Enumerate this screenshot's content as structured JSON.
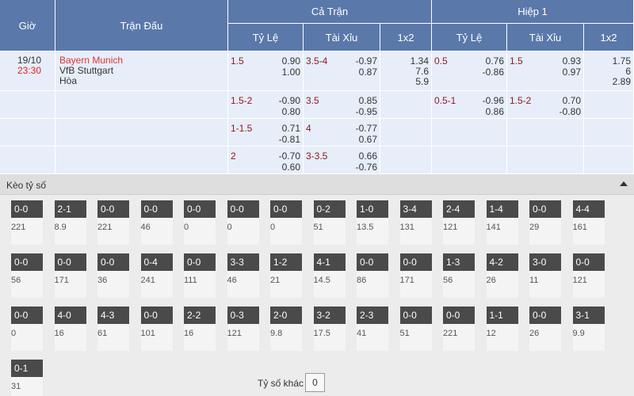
{
  "header": {
    "time": "Giờ",
    "match": "Trận Đấu",
    "full": "Cả Trận",
    "half": "Hiệp 1",
    "columns": [
      "Tỷ Lệ",
      "Tài Xỉu",
      "1x2",
      "Tỷ Lệ",
      "Tài Xỉu",
      "1x2"
    ]
  },
  "match": {
    "date": "19/10",
    "time": "23:30",
    "home": "Bayern Munich",
    "away": "VfB Stuttgart",
    "draw": "Hòa"
  },
  "rows": [
    {
      "full_hdp": {
        "line": "1.5",
        "odds": [
          "0.90",
          "1.00"
        ]
      },
      "full_ou": {
        "line": "3.5-4",
        "odds": [
          "-0.97",
          "0.87"
        ]
      },
      "full_1x2": [
        "1.34",
        "7.6",
        "5.9"
      ],
      "half_hdp": {
        "line": "0.5",
        "odds": [
          "0.76",
          "-0.86"
        ]
      },
      "half_ou": {
        "line": "1.5",
        "odds": [
          "0.93",
          "0.97"
        ]
      },
      "half_1x2": [
        "1.75",
        "6",
        "2.89"
      ]
    },
    {
      "full_hdp": {
        "line": "1.5-2",
        "odds": [
          "-0.90",
          "0.80"
        ]
      },
      "full_ou": {
        "line": "3.5",
        "odds": [
          "0.85",
          "-0.95"
        ]
      },
      "half_hdp": {
        "line": "0.5-1",
        "odds": [
          "-0.96",
          "0.86"
        ]
      },
      "half_ou": {
        "line": "1.5-2",
        "odds": [
          "0.70",
          "-0.80"
        ]
      }
    },
    {
      "full_hdp": {
        "line": "1-1.5",
        "odds": [
          "0.71",
          "-0.81"
        ]
      },
      "full_ou": {
        "line": "4",
        "odds": [
          "-0.77",
          "0.67"
        ]
      }
    },
    {
      "full_hdp": {
        "line": "2",
        "odds": [
          "-0.70",
          "0.60"
        ]
      },
      "full_ou": {
        "line": "3-3.5",
        "odds": [
          "0.66",
          "-0.76"
        ]
      }
    }
  ],
  "score_section": {
    "title": "Kèo tỷ số",
    "other_label": "Tỷ số khác",
    "other_value": "0",
    "scores": [
      {
        "score": "0-0",
        "odds": "221"
      },
      {
        "score": "2-1",
        "odds": "8.9"
      },
      {
        "score": "0-0",
        "odds": "221"
      },
      {
        "score": "0-0",
        "odds": "46"
      },
      {
        "score": "0-0",
        "odds": "0"
      },
      {
        "score": "0-0",
        "odds": "0"
      },
      {
        "score": "0-0",
        "odds": "0"
      },
      {
        "score": "0-2",
        "odds": "51"
      },
      {
        "score": "1-0",
        "odds": "13.5"
      },
      {
        "score": "3-4",
        "odds": "131"
      },
      {
        "score": "2-4",
        "odds": "121"
      },
      {
        "score": "1-4",
        "odds": "141"
      },
      {
        "score": "0-0",
        "odds": "29"
      },
      {
        "score": "4-4",
        "odds": "161"
      },
      {
        "score": "0-0",
        "odds": "56"
      },
      {
        "score": "0-0",
        "odds": "171"
      },
      {
        "score": "0-0",
        "odds": "36"
      },
      {
        "score": "0-4",
        "odds": "241"
      },
      {
        "score": "0-0",
        "odds": "111"
      },
      {
        "score": "3-3",
        "odds": "46"
      },
      {
        "score": "1-2",
        "odds": "21"
      },
      {
        "score": "4-1",
        "odds": "14.5"
      },
      {
        "score": "0-0",
        "odds": "86"
      },
      {
        "score": "0-0",
        "odds": "171"
      },
      {
        "score": "1-3",
        "odds": "56"
      },
      {
        "score": "4-2",
        "odds": "26"
      },
      {
        "score": "3-0",
        "odds": "11"
      },
      {
        "score": "0-0",
        "odds": "121"
      },
      {
        "score": "0-0",
        "odds": "0"
      },
      {
        "score": "4-0",
        "odds": "16"
      },
      {
        "score": "4-3",
        "odds": "61"
      },
      {
        "score": "0-0",
        "odds": "101"
      },
      {
        "score": "2-2",
        "odds": "16"
      },
      {
        "score": "0-3",
        "odds": "121"
      },
      {
        "score": "2-0",
        "odds": "9.8"
      },
      {
        "score": "3-2",
        "odds": "17.5"
      },
      {
        "score": "2-3",
        "odds": "41"
      },
      {
        "score": "0-0",
        "odds": "51"
      },
      {
        "score": "0-0",
        "odds": "221"
      },
      {
        "score": "1-1",
        "odds": "12"
      },
      {
        "score": "0-0",
        "odds": "26"
      },
      {
        "score": "3-1",
        "odds": "9.9"
      },
      {
        "score": "0-1",
        "odds": "31"
      }
    ]
  }
}
